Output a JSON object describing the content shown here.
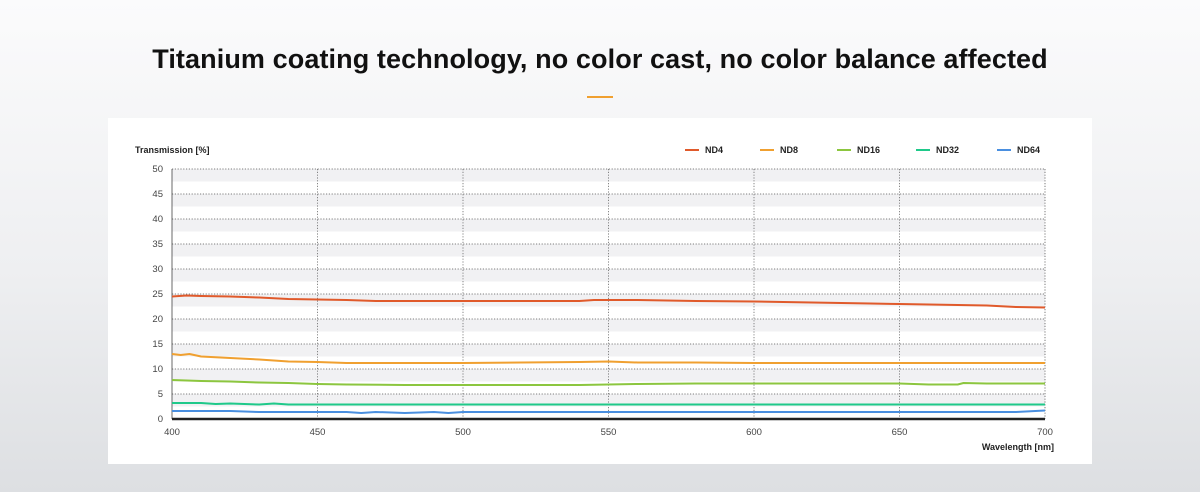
{
  "headline": "Titanium coating technology, no color cast, no color balance affected",
  "accent_color": "#f0a030",
  "chart_data": {
    "type": "line",
    "ylabel": "Transmission",
    "ylabel_unit": "[%]",
    "xlabel": "Wavelength",
    "xlabel_unit": "[nm]",
    "xlim": [
      400,
      700
    ],
    "ylim": [
      0,
      50
    ],
    "x_ticks": [
      400,
      450,
      500,
      550,
      600,
      650,
      700
    ],
    "y_ticks": [
      0,
      5,
      10,
      15,
      20,
      25,
      30,
      35,
      40,
      45,
      50
    ],
    "grid": true,
    "legend_position": "top-right",
    "series": [
      {
        "name": "ND4",
        "color": "#e05a2b",
        "x": [
          400,
          405,
          410,
          420,
          430,
          440,
          450,
          460,
          470,
          480,
          500,
          520,
          540,
          545,
          550,
          560,
          580,
          600,
          610,
          620,
          640,
          650,
          660,
          680,
          690,
          700
        ],
        "y": [
          24.5,
          24.7,
          24.6,
          24.5,
          24.3,
          24.0,
          23.9,
          23.8,
          23.6,
          23.6,
          23.6,
          23.6,
          23.6,
          23.8,
          23.8,
          23.8,
          23.6,
          23.5,
          23.4,
          23.3,
          23.1,
          23.0,
          22.9,
          22.7,
          22.4,
          22.3
        ]
      },
      {
        "name": "ND8",
        "color": "#f0a030",
        "x": [
          400,
          403,
          406,
          410,
          420,
          430,
          440,
          450,
          460,
          480,
          500,
          520,
          540,
          550,
          560,
          580,
          600,
          620,
          650,
          680,
          700
        ],
        "y": [
          13.0,
          12.8,
          13.0,
          12.5,
          12.2,
          11.9,
          11.5,
          11.4,
          11.2,
          11.2,
          11.2,
          11.3,
          11.4,
          11.5,
          11.3,
          11.3,
          11.2,
          11.2,
          11.2,
          11.2,
          11.2
        ]
      },
      {
        "name": "ND16",
        "color": "#8cc63f",
        "x": [
          400,
          410,
          420,
          430,
          440,
          450,
          460,
          480,
          500,
          520,
          540,
          560,
          580,
          600,
          620,
          650,
          660,
          670,
          672,
          680,
          700
        ],
        "y": [
          7.8,
          7.6,
          7.5,
          7.3,
          7.2,
          7.0,
          6.9,
          6.8,
          6.8,
          6.8,
          6.8,
          7.0,
          7.1,
          7.1,
          7.1,
          7.1,
          6.9,
          6.9,
          7.2,
          7.1,
          7.1
        ]
      },
      {
        "name": "ND32",
        "color": "#1fc98a",
        "x": [
          400,
          410,
          415,
          420,
          430,
          435,
          440,
          460,
          500,
          550,
          600,
          650,
          700
        ],
        "y": [
          3.2,
          3.2,
          3.0,
          3.1,
          2.9,
          3.1,
          2.9,
          2.9,
          2.9,
          2.9,
          2.9,
          2.9,
          2.9
        ]
      },
      {
        "name": "ND64",
        "color": "#4a8fe0",
        "x": [
          400,
          410,
          420,
          430,
          450,
          460,
          465,
          470,
          480,
          490,
          495,
          500,
          520,
          550,
          600,
          650,
          690,
          700
        ],
        "y": [
          1.6,
          1.6,
          1.6,
          1.4,
          1.4,
          1.4,
          1.2,
          1.4,
          1.2,
          1.4,
          1.2,
          1.4,
          1.4,
          1.4,
          1.4,
          1.4,
          1.4,
          1.7
        ]
      }
    ]
  }
}
